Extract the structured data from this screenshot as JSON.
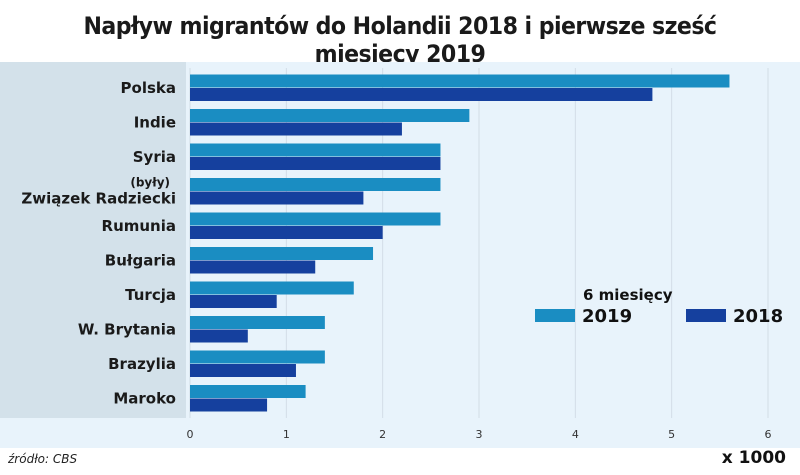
{
  "chart_data": {
    "type": "bar",
    "orientation": "horizontal",
    "title": "Napływ migrantów do Holandii 2018 i pierwsze sześć miesięcy 2019",
    "categories": [
      "Polska",
      "Indie",
      "Syria",
      "(były)|Związek Radziecki",
      "Rumunia",
      "Bułgaria",
      "Turcja",
      "W. Brytania",
      "Brazylia",
      "Maroko"
    ],
    "series": [
      {
        "name": "2019",
        "legend_note": "6 miesięcy",
        "color": "#1a8dc2",
        "values": [
          5.6,
          2.9,
          2.6,
          2.6,
          2.6,
          1.9,
          1.7,
          1.4,
          1.4,
          1.2
        ]
      },
      {
        "name": "2018",
        "color": "#15409e",
        "values": [
          4.8,
          2.2,
          2.6,
          1.8,
          2.0,
          1.3,
          0.9,
          0.6,
          1.1,
          0.8
        ]
      }
    ],
    "xlim": [
      0,
      6
    ],
    "xticks": [
      "0",
      "1",
      "2",
      "3",
      "4",
      "5",
      "6"
    ],
    "xlabel": "x 1000",
    "grid": true,
    "legend_position": "right"
  },
  "source": "źródło: CBS"
}
